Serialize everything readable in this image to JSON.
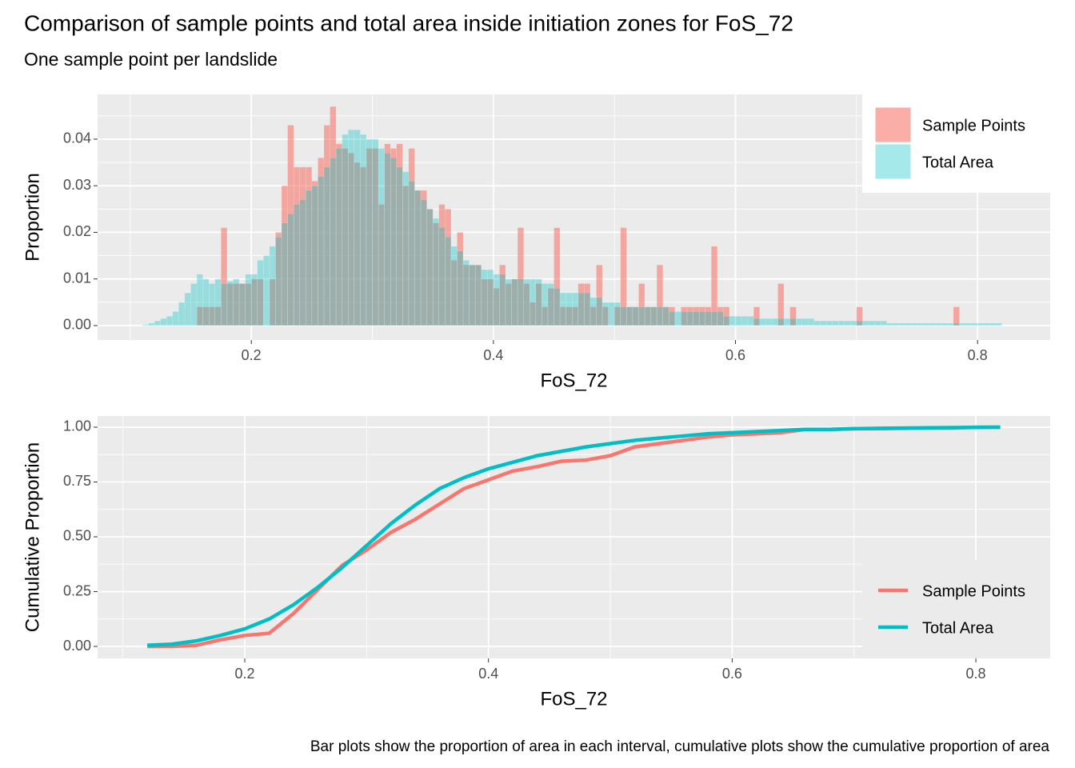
{
  "title": "Comparison of sample points and total area inside initiation zones for FoS_72",
  "subtitle": "One sample point per landslide",
  "caption": "Bar plots show the proportion of area in each interval, cumulative plots show the cumulative proportion of area",
  "chart_data": [
    {
      "type": "histogram",
      "xlabel": "FoS_72",
      "ylabel": "Proportion",
      "grid": true,
      "legend": "top-right",
      "xlim": [
        0.073,
        0.86
      ],
      "ylim": [
        -0.0031,
        0.0496
      ],
      "xticks": [
        0.2,
        0.4,
        0.6,
        0.8
      ],
      "yticks": [
        {
          "value": 0,
          "label": "0.00"
        },
        {
          "value": 0.01,
          "label": "0.01"
        },
        {
          "value": 0.02,
          "label": "0.02"
        },
        {
          "value": 0.03,
          "label": "0.03"
        },
        {
          "value": 0.04,
          "label": "0.04"
        }
      ],
      "bins": [
        0.11,
        0.115,
        0.12,
        0.125,
        0.13,
        0.135,
        0.14,
        0.145,
        0.15,
        0.155,
        0.16,
        0.165,
        0.17,
        0.175,
        0.18,
        0.185,
        0.19,
        0.195,
        0.2,
        0.205,
        0.21,
        0.215,
        0.22,
        0.225,
        0.23,
        0.235,
        0.24,
        0.245,
        0.25,
        0.255,
        0.26,
        0.265,
        0.27,
        0.275,
        0.28,
        0.285,
        0.29,
        0.295,
        0.3,
        0.305,
        0.31,
        0.315,
        0.32,
        0.325,
        0.33,
        0.335,
        0.34,
        0.345,
        0.35,
        0.355,
        0.36,
        0.365,
        0.37,
        0.375,
        0.38,
        0.385,
        0.39,
        0.395,
        0.4,
        0.405,
        0.41,
        0.415,
        0.42,
        0.425,
        0.43,
        0.435,
        0.44,
        0.445,
        0.45,
        0.455,
        0.46,
        0.465,
        0.47,
        0.475,
        0.48,
        0.485,
        0.49,
        0.495,
        0.5,
        0.505,
        0.51,
        0.515,
        0.52,
        0.525,
        0.53,
        0.535,
        0.54,
        0.545,
        0.55,
        0.555,
        0.56,
        0.565,
        0.57,
        0.575,
        0.58,
        0.585,
        0.59,
        0.595,
        0.6,
        0.605,
        0.61,
        0.615,
        0.62,
        0.625,
        0.63,
        0.635,
        0.64,
        0.645,
        0.65,
        0.655,
        0.66,
        0.665,
        0.67,
        0.675,
        0.68,
        0.685,
        0.69,
        0.695,
        0.7,
        0.705,
        0.71,
        0.715,
        0.72,
        0.725,
        0.73,
        0.735,
        0.74,
        0.745,
        0.75,
        0.755,
        0.76,
        0.765,
        0.77,
        0.775,
        0.78,
        0.785,
        0.79,
        0.795,
        0.8,
        0.805,
        0.81,
        0.815,
        0.82
      ],
      "series": [
        {
          "name": "Sample Points",
          "color": "#F8766D",
          "opacity": 0.6,
          "values": [
            0,
            0,
            0,
            0,
            0,
            0,
            0,
            0,
            0,
            0.004,
            0.004,
            0.004,
            0.004,
            0.021,
            0.009,
            0.009,
            0.009,
            0.009,
            0.01,
            0.01,
            0,
            0.01,
            0.02,
            0.03,
            0.043,
            0.034,
            0.034,
            0.034,
            0.031,
            0.036,
            0.043,
            0.047,
            0.039,
            0.038,
            0.037,
            0.035,
            0.034,
            0.038,
            0.038,
            0.026,
            0.039,
            0.038,
            0.039,
            0.03,
            0.038,
            0.029,
            0.029,
            0.025,
            0.022,
            0.026,
            0.025,
            0.014,
            0.02,
            0.013,
            0.013,
            0.013,
            0.01,
            0.01,
            0.008,
            0.013,
            0.009,
            0.01,
            0.021,
            0.009,
            0.005,
            0.009,
            0.004,
            0.008,
            0.021,
            0.004,
            0.004,
            0.004,
            0.009,
            0.009,
            0.004,
            0.013,
            0.004,
            0,
            0.004,
            0.021,
            0.004,
            0.004,
            0.009,
            0.004,
            0.004,
            0.013,
            0.004,
            0.004,
            0,
            0.004,
            0.004,
            0.004,
            0.004,
            0.004,
            0.017,
            0.004,
            0.004,
            0,
            0,
            0,
            0,
            0.004,
            0,
            0,
            0,
            0.009,
            0,
            0.004,
            0,
            0,
            0,
            0,
            0,
            0,
            0,
            0,
            0,
            0,
            0.004,
            0,
            0,
            0,
            0,
            0,
            0,
            0,
            0,
            0,
            0,
            0,
            0,
            0,
            0,
            0,
            0.004,
            0,
            0,
            0,
            0,
            0,
            0,
            0
          ]
        },
        {
          "name": "Total Area",
          "color": "#00BFC4",
          "opacity": 0.35,
          "values": [
            0.0002,
            0.0005,
            0.001,
            0.0015,
            0.002,
            0.003,
            0.005,
            0.007,
            0.009,
            0.011,
            0.01,
            0.009,
            0.01,
            0.009,
            0.0095,
            0.01,
            0.009,
            0.011,
            0.011,
            0.014,
            0.015,
            0.017,
            0.019,
            0.022,
            0.024,
            0.026,
            0.027,
            0.029,
            0.03,
            0.032,
            0.034,
            0.036,
            0.038,
            0.041,
            0.042,
            0.042,
            0.041,
            0.04,
            0.04,
            0.038,
            0.037,
            0.036,
            0.034,
            0.033,
            0.031,
            0.029,
            0.027,
            0.025,
            0.023,
            0.021,
            0.019,
            0.017,
            0.016,
            0.014,
            0.013,
            0.013,
            0.012,
            0.012,
            0.011,
            0.011,
            0.01,
            0.01,
            0.01,
            0.01,
            0.01,
            0.01,
            0.009,
            0.009,
            0.008,
            0.007,
            0.007,
            0.007,
            0.007,
            0.007,
            0.006,
            0.006,
            0.005,
            0.005,
            0.005,
            0.004,
            0.004,
            0.004,
            0.004,
            0.004,
            0.004,
            0.004,
            0.004,
            0.003,
            0.003,
            0.003,
            0.003,
            0.003,
            0.003,
            0.003,
            0.003,
            0.003,
            0.002,
            0.002,
            0.002,
            0.002,
            0.002,
            0.0015,
            0.0015,
            0.0015,
            0.0015,
            0.0015,
            0.0015,
            0.0015,
            0.0015,
            0.0015,
            0.0015,
            0.001,
            0.001,
            0.001,
            0.001,
            0.001,
            0.001,
            0.001,
            0.001,
            0.001,
            0.001,
            0.001,
            0.001,
            0.0005,
            0.0005,
            0.0005,
            0.0005,
            0.0005,
            0.0005,
            0.0005,
            0.0005,
            0.0005,
            0.0005,
            0.0005,
            0.0005,
            0.0005,
            0.0005,
            0.0005,
            0.0005,
            0.0005,
            0.0005,
            0.0005
          ]
        }
      ]
    },
    {
      "type": "line",
      "xlabel": "FoS_72",
      "ylabel": "Cumulative Proportion",
      "grid": true,
      "legend": "bottom-right",
      "xlim": [
        0.0792,
        0.861
      ],
      "ylim": [
        -0.0547,
        1.051
      ],
      "xticks": [
        0.2,
        0.4,
        0.6,
        0.8
      ],
      "yticks": [
        {
          "value": 0,
          "label": "0.00"
        },
        {
          "value": 0.25,
          "label": "0.25"
        },
        {
          "value": 0.5,
          "label": "0.50"
        },
        {
          "value": 0.75,
          "label": "0.75"
        },
        {
          "value": 1,
          "label": "1.00"
        }
      ],
      "x": [
        0.12,
        0.14,
        0.16,
        0.18,
        0.2,
        0.22,
        0.24,
        0.26,
        0.28,
        0.3,
        0.32,
        0.34,
        0.36,
        0.38,
        0.4,
        0.42,
        0.44,
        0.46,
        0.48,
        0.5,
        0.52,
        0.54,
        0.56,
        0.58,
        0.6,
        0.62,
        0.64,
        0.66,
        0.68,
        0.7,
        0.72,
        0.74,
        0.76,
        0.78,
        0.8,
        0.82
      ],
      "series": [
        {
          "name": "Sample Points",
          "color": "#F8766D",
          "values": [
            0,
            0,
            0.005,
            0.03,
            0.05,
            0.06,
            0.15,
            0.26,
            0.37,
            0.44,
            0.52,
            0.58,
            0.65,
            0.72,
            0.76,
            0.8,
            0.82,
            0.845,
            0.85,
            0.87,
            0.91,
            0.925,
            0.94,
            0.955,
            0.965,
            0.97,
            0.975,
            0.99,
            0.99,
            0.993,
            0.993,
            0.995,
            0.996,
            0.996,
            1,
            1
          ]
        },
        {
          "name": "Total Area",
          "color": "#00BFC4",
          "values": [
            0.005,
            0.01,
            0.025,
            0.05,
            0.08,
            0.125,
            0.19,
            0.27,
            0.36,
            0.46,
            0.56,
            0.645,
            0.72,
            0.77,
            0.81,
            0.84,
            0.87,
            0.89,
            0.91,
            0.925,
            0.94,
            0.95,
            0.96,
            0.97,
            0.975,
            0.98,
            0.985,
            0.99,
            0.99,
            0.993,
            0.995,
            0.996,
            0.997,
            0.998,
            0.999,
            1
          ]
        }
      ]
    }
  ]
}
